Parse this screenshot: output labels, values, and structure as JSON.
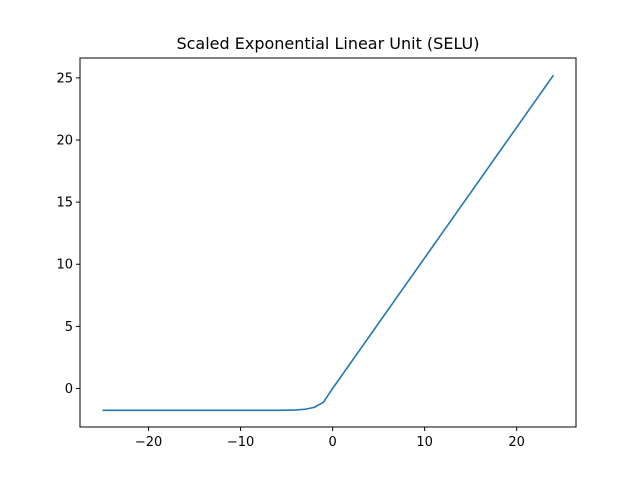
{
  "chart_data": {
    "type": "line",
    "title": "Scaled Exponential Linear Unit (SELU)",
    "xlabel": "",
    "ylabel": "",
    "xlim": [
      -27.45,
      26.45
    ],
    "ylim": [
      -3.1,
      26.6
    ],
    "xticks": [
      -20,
      -10,
      0,
      10,
      20
    ],
    "yticks": [
      0,
      5,
      10,
      15,
      20,
      25
    ],
    "xtick_labels": [
      "−20",
      "−10",
      "0",
      "10",
      "20"
    ],
    "ytick_labels": [
      "0",
      "5",
      "10",
      "15",
      "20",
      "25"
    ],
    "grid": false,
    "colors": {
      "series": "#1f77b4"
    },
    "series": [
      {
        "x": [
          -25,
          -24,
          -23,
          -22,
          -21,
          -20,
          -19,
          -18,
          -17,
          -16,
          -15,
          -14,
          -13,
          -12,
          -11,
          -10,
          -9,
          -8,
          -7,
          -6,
          -5,
          -4,
          -3,
          -2,
          -1,
          0,
          1,
          2,
          3,
          4,
          5,
          6,
          7,
          8,
          9,
          10,
          11,
          12,
          13,
          14,
          15,
          16,
          17,
          18,
          19,
          20,
          21,
          22,
          23,
          24
        ],
        "values": [
          -1.758,
          -1.758,
          -1.758,
          -1.758,
          -1.758,
          -1.758,
          -1.758,
          -1.758,
          -1.758,
          -1.758,
          -1.758,
          -1.758,
          -1.758,
          -1.758,
          -1.758,
          -1.758,
          -1.758,
          -1.758,
          -1.756,
          -1.754,
          -1.746,
          -1.726,
          -1.671,
          -1.52,
          -1.111,
          0.0,
          1.051,
          2.101,
          3.152,
          4.203,
          5.254,
          6.304,
          7.355,
          8.406,
          9.456,
          10.507,
          11.558,
          12.608,
          13.659,
          14.71,
          15.761,
          16.811,
          17.862,
          18.913,
          19.963,
          21.014,
          22.065,
          23.115,
          24.166,
          25.217
        ]
      }
    ]
  }
}
